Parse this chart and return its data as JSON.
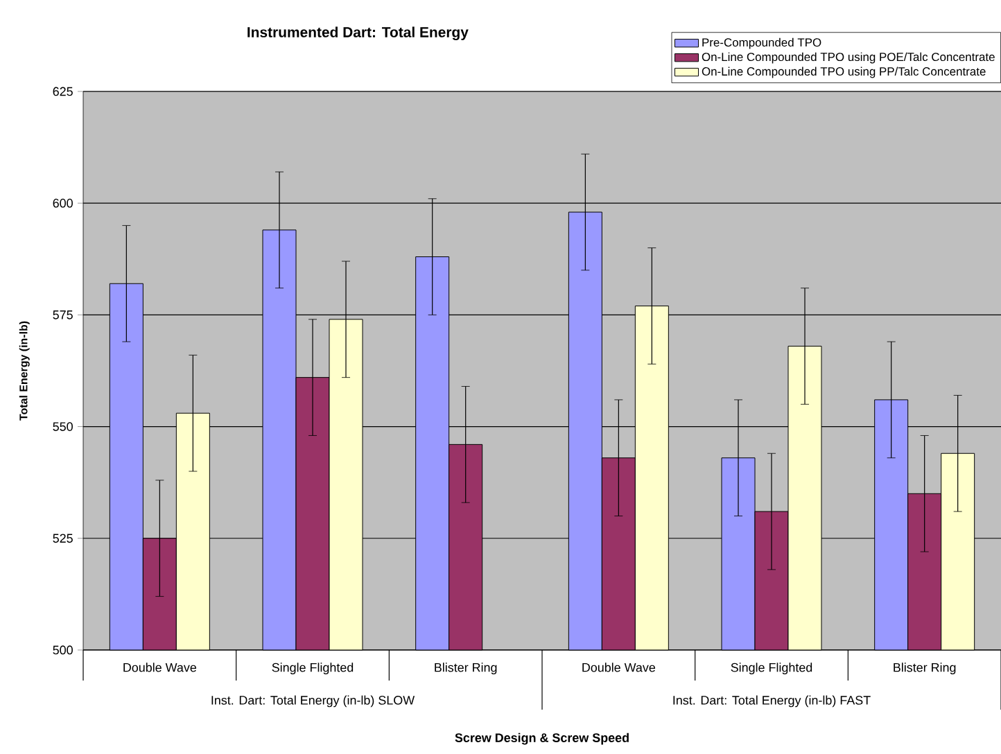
{
  "chart_data": {
    "type": "bar",
    "title": "Instrumented Dart: Total Energy",
    "xlabel": "Screw Design & Screw Speed",
    "ylabel": "Total Energy (in-lb)",
    "categories": [
      "Double Wave",
      "Single Flighted",
      "Blister Ring",
      "Double Wave",
      "Single Flighted",
      "Blister Ring"
    ],
    "annotations": [
      "Inst. Dart: Total Energy (in-lb) SLOW",
      "Inst. Dart: Total Energy (in-lb) FAST"
    ],
    "series": [
      {
        "name": "Pre-Compounded TPO",
        "color": "#9999ff",
        "values": [
          582,
          594,
          588,
          598,
          543,
          556
        ],
        "errors": [
          13,
          13,
          13,
          13,
          13,
          13
        ]
      },
      {
        "name": "On-Line Compounded TPO using POE/Talc Concentrate",
        "color": "#993366",
        "values": [
          525,
          561,
          546,
          543,
          531,
          535
        ],
        "errors": [
          13,
          13,
          13,
          13,
          13,
          13
        ]
      },
      {
        "name": "On-Line Compounded TPO using PP/Talc Concentrate",
        "color": "#ffffcc",
        "values": [
          553,
          574,
          null,
          577,
          568,
          544
        ],
        "errors": [
          13,
          13,
          null,
          13,
          13,
          13
        ]
      }
    ],
    "ylim": [
      500,
      625
    ],
    "yticks": [
      500,
      525,
      550,
      575,
      600,
      625
    ],
    "grid": "y",
    "legend": "top right"
  }
}
